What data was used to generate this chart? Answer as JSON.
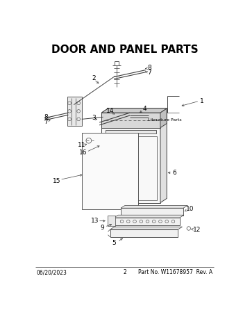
{
  "title": "DOOR AND PANEL PARTS",
  "title_fontsize": 11,
  "title_fontweight": "bold",
  "footer_left": "06/20/2023",
  "footer_center": "2",
  "footer_right": "Part No. W11678957  Rev. A",
  "footer_fontsize": 5.5,
  "bg_color": "#ffffff",
  "line_color": "#404040",
  "label_fontsize": 6.5,
  "lit_parts_label": "Literature Parts",
  "fig_width": 3.5,
  "fig_height": 4.53,
  "dpi": 100
}
